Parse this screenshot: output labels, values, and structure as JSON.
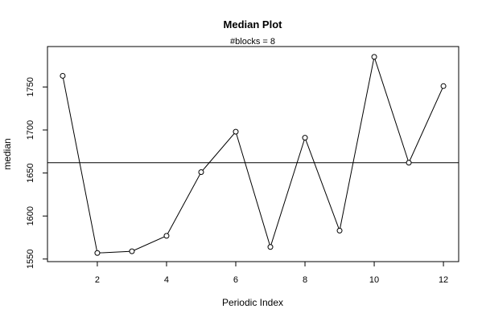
{
  "chart_data": {
    "type": "line",
    "title": "Median Plot",
    "subtitle": "#blocks =  8",
    "xlabel": "Periodic Index",
    "ylabel": "median",
    "x": [
      1,
      2,
      3,
      4,
      5,
      6,
      7,
      8,
      9,
      10,
      11,
      12
    ],
    "values": [
      1763,
      1557,
      1559,
      1577,
      1651,
      1698,
      1564,
      1691,
      1583,
      1785,
      1662,
      1751
    ],
    "reference_line": 1662,
    "xlim": [
      0.56,
      12.44
    ],
    "ylim": [
      1547,
      1797
    ],
    "x_ticks": [
      2,
      4,
      6,
      8,
      10,
      12
    ],
    "y_ticks": [
      1550,
      1600,
      1650,
      1700,
      1750
    ],
    "marker": "open-circle",
    "line_color": "#000000",
    "reference_line_color": "#000000",
    "grid": false,
    "legend": "none"
  }
}
